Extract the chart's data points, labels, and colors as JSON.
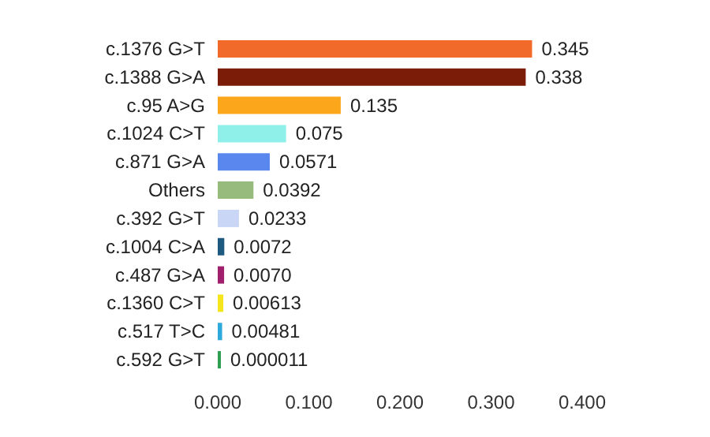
{
  "chart_data": {
    "type": "bar",
    "orientation": "horizontal",
    "categories": [
      "c.1376 G>T",
      "c.1388 G>A",
      "c.95 A>G",
      "c.1024 C>T",
      "c.871 G>A",
      "Others",
      "c.392 G>T",
      "c.1004 C>A",
      "c.487 G>A",
      "c.1360 C>T",
      "c.517 T>C",
      "c.592 G>T"
    ],
    "values": [
      0.345,
      0.338,
      0.135,
      0.075,
      0.0571,
      0.0392,
      0.0233,
      0.0072,
      0.007,
      0.00613,
      0.00481,
      1.1e-05
    ],
    "value_labels": [
      "0.345",
      "0.338",
      "0.135",
      "0.075",
      "0.0571",
      "0.0392",
      "0.0233",
      "0.0072",
      "0.0070",
      "0.00613",
      "0.00481",
      "0.000011"
    ],
    "colors": [
      "#f26a2a",
      "#7a1c08",
      "#fca61c",
      "#8ff0ea",
      "#5a87ee",
      "#97bb7c",
      "#c9d6f5",
      "#1e5a80",
      "#a0206e",
      "#f5e51c",
      "#2ea9dc",
      "#2e9e50"
    ],
    "xlim": [
      0,
      0.4
    ],
    "xticks": [
      {
        "value": 0,
        "label": "0.000"
      },
      {
        "value": 0.1,
        "label": "0.100"
      },
      {
        "value": 0.2,
        "label": "0.200"
      },
      {
        "value": 0.3,
        "label": "0.300"
      },
      {
        "value": 0.4,
        "label": "0.400"
      }
    ]
  }
}
